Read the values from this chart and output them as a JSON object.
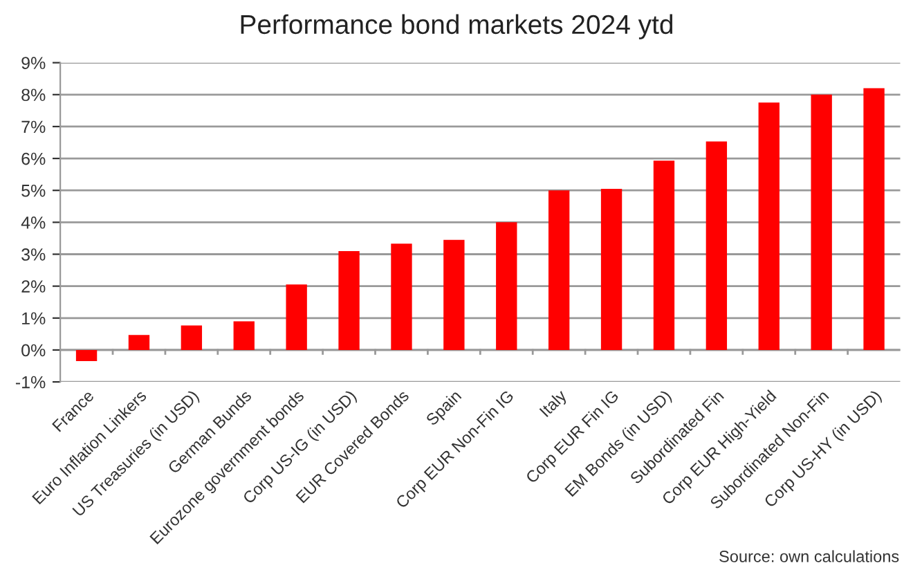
{
  "chart_data": {
    "type": "bar",
    "title": "Performance bond markets 2024 ytd",
    "categories": [
      "France",
      "Euro Inflation Linkers",
      "US Treasuries (in USD)",
      "German Bunds",
      "Eurozone government bonds",
      "Corp US-IG (in USD)",
      "EUR Covered Bonds",
      "Spain",
      "Corp EUR Non-Fin IG",
      "Italy",
      "Corp EUR Fin IG",
      "EM Bonds (in USD)",
      "Subordinated Fin",
      "Corp EUR High-Yield",
      "Subordinated Non-Fin",
      "Corp US-HY (in USD)"
    ],
    "values": [
      -0.35,
      0.47,
      0.77,
      0.9,
      2.05,
      3.1,
      3.33,
      3.45,
      4.0,
      5.0,
      5.05,
      5.93,
      6.53,
      7.75,
      8.0,
      8.2
    ],
    "color": "#ff0000",
    "ylim": [
      -1,
      9
    ],
    "yticks": [
      {
        "value": -1,
        "label": "-1%"
      },
      {
        "value": 0,
        "label": "0%"
      },
      {
        "value": 1,
        "label": "1%"
      },
      {
        "value": 2,
        "label": "2%"
      },
      {
        "value": 3,
        "label": "3%"
      },
      {
        "value": 4,
        "label": "4%"
      },
      {
        "value": 5,
        "label": "5%"
      },
      {
        "value": 6,
        "label": "6%"
      },
      {
        "value": 7,
        "label": "7%"
      },
      {
        "value": 8,
        "label": "8%"
      },
      {
        "value": 9,
        "label": "9%"
      }
    ],
    "grid": "y",
    "annotations": [
      "Source: own calculations"
    ]
  }
}
